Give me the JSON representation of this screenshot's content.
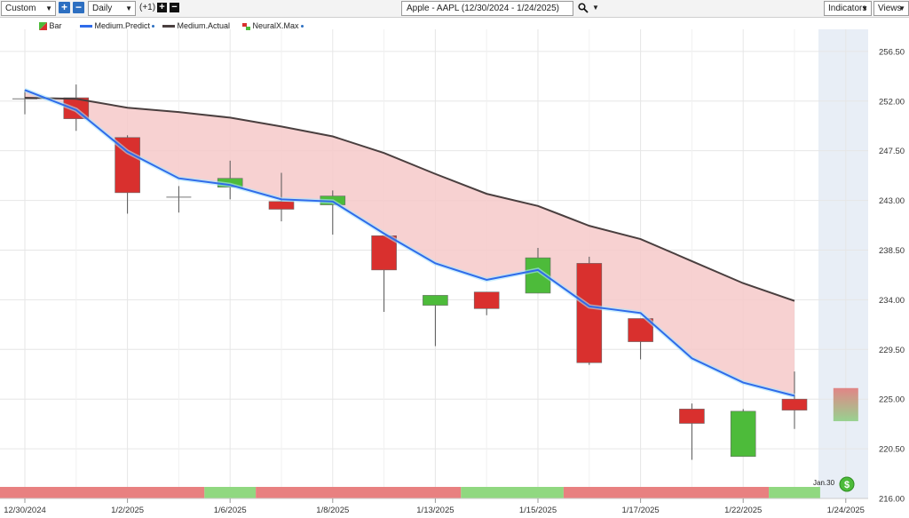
{
  "toolbar": {
    "period_select": "Custom",
    "interval_select": "Daily",
    "offset_label": "(+1)",
    "symbol_title": "Apple - AAPL (12/30/2024 - 1/24/2025)",
    "indicators_label": "Indicators",
    "views_label": "Views"
  },
  "legend": {
    "bar": "Bar",
    "medium_predict": "Medium.Predict",
    "medium_actual": "Medium.Actual",
    "neuralx_max": "NeuralX.Max"
  },
  "colors": {
    "up": "#4dbb3a",
    "down": "#d9302e",
    "predict_line": "#2f6bea",
    "actual_line": "#4a3f3f",
    "band_fill": "#f6c9c9",
    "strip_red": "#e88080",
    "strip_green": "#90d880",
    "future_shade": "#e8eef6"
  },
  "badge": {
    "label": "Jan.30",
    "icon": "dollar-coin-icon"
  },
  "chart_data": {
    "type": "candlestick",
    "ylim": [
      216.0,
      258.5
    ],
    "y_ticks": [
      216.0,
      220.5,
      225.0,
      229.5,
      234.0,
      238.5,
      243.0,
      247.5,
      252.0,
      256.5
    ],
    "y_tick_labels": [
      "216.00",
      "220.50",
      "225.00",
      "229.50",
      "234.00",
      "238.50",
      "243.00",
      "247.50",
      "252.00",
      "256.50"
    ],
    "x_tick_labels": [
      "12/30/2024",
      "1/2/2025",
      "1/6/2025",
      "1/8/2025",
      "1/13/2025",
      "1/15/2025",
      "1/17/2025",
      "1/22/2025",
      "1/24/2025"
    ],
    "x_tick_slots": [
      0,
      4,
      8,
      12,
      16,
      20,
      24,
      28,
      32
    ],
    "total_slots": 33,
    "candles": [
      {
        "slot": 0,
        "open": 252.2,
        "high": 253.0,
        "low": 250.8,
        "close": 252.2
      },
      {
        "slot": 2,
        "open": 252.3,
        "high": 253.5,
        "low": 249.3,
        "close": 250.4
      },
      {
        "slot": 4,
        "open": 248.7,
        "high": 248.9,
        "low": 241.8,
        "close": 243.7
      },
      {
        "slot": 6,
        "open": 243.3,
        "high": 244.3,
        "low": 241.9,
        "close": 243.3
      },
      {
        "slot": 8,
        "open": 244.2,
        "high": 246.6,
        "low": 243.1,
        "close": 245.0
      },
      {
        "slot": 10,
        "open": 242.9,
        "high": 245.5,
        "low": 241.1,
        "close": 242.2
      },
      {
        "slot": 12,
        "open": 242.6,
        "high": 243.9,
        "low": 239.9,
        "close": 243.4
      },
      {
        "slot": 14,
        "open": 239.8,
        "high": 239.8,
        "low": 232.9,
        "close": 236.7
      },
      {
        "slot": 16,
        "open": 233.5,
        "high": 234.3,
        "low": 229.8,
        "close": 234.4
      },
      {
        "slot": 18,
        "open": 234.7,
        "high": 234.7,
        "low": 232.6,
        "close": 233.2
      },
      {
        "slot": 20,
        "open": 234.6,
        "high": 238.7,
        "low": 234.6,
        "close": 237.8
      },
      {
        "slot": 22,
        "open": 237.3,
        "high": 237.9,
        "low": 228.1,
        "close": 228.3
      },
      {
        "slot": 24,
        "open": 232.3,
        "high": 232.3,
        "low": 228.6,
        "close": 230.2
      },
      {
        "slot": 26,
        "open": 224.1,
        "high": 224.6,
        "low": 219.5,
        "close": 222.8
      },
      {
        "slot": 28,
        "open": 219.8,
        "high": 224.1,
        "low": 219.8,
        "close": 223.9
      },
      {
        "slot": 30,
        "open": 225.0,
        "high": 227.5,
        "low": 222.3,
        "close": 224.0
      }
    ],
    "forecast": {
      "slot": 32,
      "high": 226.0,
      "low": 223.0
    },
    "series": [
      {
        "name": "Medium.Predict",
        "slots": [
          0,
          2,
          4,
          6,
          8,
          10,
          12,
          14,
          16,
          18,
          20,
          22,
          24,
          26,
          28,
          30
        ],
        "values": [
          253.0,
          251.2,
          247.4,
          245.0,
          244.4,
          243.1,
          242.9,
          240.0,
          237.3,
          235.8,
          236.7,
          233.4,
          232.8,
          228.7,
          226.5,
          225.3
        ]
      },
      {
        "name": "Medium.Actual",
        "slots": [
          0,
          2,
          4,
          6,
          8,
          10,
          12,
          14,
          16,
          18,
          20,
          22,
          24,
          26,
          28,
          30
        ],
        "values": [
          252.3,
          252.2,
          251.4,
          251.0,
          250.5,
          249.7,
          248.8,
          247.3,
          245.4,
          243.6,
          242.5,
          240.7,
          239.5,
          237.5,
          235.5,
          233.9
        ]
      }
    ],
    "signal_strip": [
      {
        "from_slot": -1,
        "to_slot": 7,
        "signal": "down"
      },
      {
        "from_slot": 7,
        "to_slot": 9,
        "signal": "up"
      },
      {
        "from_slot": 9,
        "to_slot": 17,
        "signal": "down"
      },
      {
        "from_slot": 17,
        "to_slot": 21,
        "signal": "up"
      },
      {
        "from_slot": 21,
        "to_slot": 29,
        "signal": "down"
      },
      {
        "from_slot": 29,
        "to_slot": 31,
        "signal": "up"
      }
    ]
  }
}
